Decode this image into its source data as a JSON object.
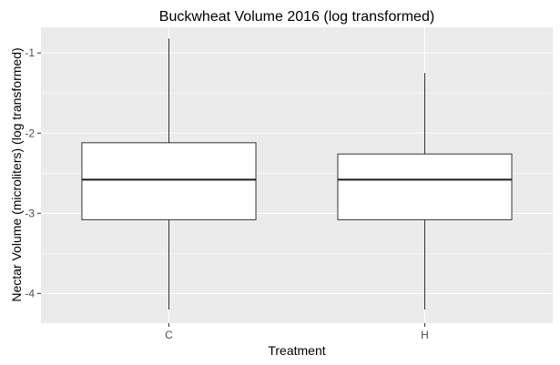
{
  "chart_data": {
    "type": "boxplot",
    "title": "Buckwheat Volume 2016 (log transformed)",
    "xlabel": "Treatment",
    "ylabel": "Nectar Volume (microliters) (log transformed)",
    "categories": [
      "C",
      "H"
    ],
    "boxes": [
      {
        "category": "C",
        "min": -4.2,
        "q1": -3.08,
        "median": -2.58,
        "q3": -2.12,
        "max": -0.82
      },
      {
        "category": "H",
        "min": -4.2,
        "q1": -3.08,
        "median": -2.58,
        "q3": -2.26,
        "max": -1.25
      }
    ],
    "ylim": [
      -4.37,
      -0.68
    ],
    "yticks": [
      -4,
      -3,
      -2,
      -1
    ],
    "ytick_labels": [
      "-4",
      "-3",
      "-2",
      "-1"
    ],
    "grid": true,
    "colors": {
      "panel": "#ebebeb",
      "grid": "#ffffff",
      "box_fill": "#ffffff",
      "box_line": "#333333"
    }
  }
}
